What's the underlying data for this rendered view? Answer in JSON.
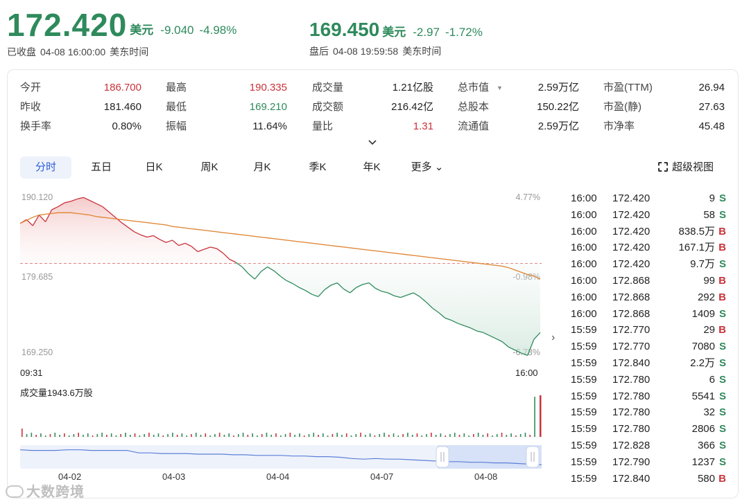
{
  "header": {
    "close_price": "172.420",
    "close_unit": "美元",
    "close_change": "-9.040",
    "close_change_pct": "-4.98%",
    "close_status": "已收盘",
    "close_time": "04-08 16:00:00",
    "close_tz": "美东时间",
    "after_price": "169.450",
    "after_unit": "美元",
    "after_change": "-2.97",
    "after_change_pct": "-1.72%",
    "after_status": "盘后",
    "after_time": "04-08 19:59:58",
    "after_tz": "美东时间"
  },
  "stats": [
    [
      {
        "label": "今开",
        "value": "186.700",
        "tone": "red"
      },
      {
        "label": "昨收",
        "value": "181.460",
        "tone": ""
      },
      {
        "label": "换手率",
        "value": "0.80%",
        "tone": ""
      }
    ],
    [
      {
        "label": "最高",
        "value": "190.335",
        "tone": "red"
      },
      {
        "label": "最低",
        "value": "169.210",
        "tone": "green"
      },
      {
        "label": "振幅",
        "value": "11.64%",
        "tone": ""
      }
    ],
    [
      {
        "label": "成交量",
        "value": "1.21亿股",
        "tone": ""
      },
      {
        "label": "成交额",
        "value": "216.42亿",
        "tone": ""
      },
      {
        "label": "量比",
        "value": "1.31",
        "tone": "red"
      }
    ],
    [
      {
        "label": "总市值",
        "value": "2.59万亿",
        "tone": ""
      },
      {
        "label": "总股本",
        "value": "150.22亿",
        "tone": ""
      },
      {
        "label": "流通值",
        "value": "2.59万亿",
        "tone": ""
      }
    ],
    [
      {
        "label": "市盈(TTM)",
        "value": "26.94",
        "tone": ""
      },
      {
        "label": "市盈(静)",
        "value": "27.63",
        "tone": ""
      },
      {
        "label": "市净率",
        "value": "45.48",
        "tone": ""
      }
    ]
  ],
  "tabs": [
    "分时",
    "五日",
    "日K",
    "周K",
    "月K",
    "季K",
    "年K",
    "更多"
  ],
  "active_tab": "分时",
  "superview_label": "超级视图",
  "chart_data": {
    "type": "line",
    "y_left_labels": [
      "190.120",
      "179.685",
      "169.250"
    ],
    "y_right_labels": [
      "4.77%",
      "-0.98%",
      "-6.73%"
    ],
    "x_labels": [
      "09:31",
      "16:00"
    ],
    "ylim": [
      169.25,
      190.12
    ],
    "prev_close": 181.46,
    "series": [
      {
        "values": [
          186.7,
          187.2,
          186.4,
          187.8,
          186.9,
          188.5,
          188.9,
          189.4,
          189.6,
          189.9,
          190.1,
          189.7,
          189.3,
          188.9,
          188.2,
          187.5,
          186.8,
          186.2,
          185.6,
          185.2,
          184.9,
          185.1,
          184.6,
          184.2,
          184.5,
          183.8,
          184.1,
          183.7,
          183.0,
          183.3,
          183.6,
          183.4,
          182.8,
          182.0,
          181.6,
          181.0,
          180.1,
          179.4,
          180.4,
          181.0,
          180.5,
          179.8,
          179.2,
          178.8,
          178.3,
          177.9,
          177.4,
          177.1,
          178.0,
          178.6,
          178.9,
          178.1,
          177.6,
          178.3,
          178.7,
          178.9,
          178.2,
          177.8,
          177.6,
          177.2,
          177.0,
          177.3,
          177.6,
          177.1,
          176.4,
          175.6,
          175.0,
          174.3,
          174.0,
          173.6,
          173.3,
          173.0,
          172.6,
          172.4,
          172.0,
          171.6,
          171.2,
          170.5,
          170.1,
          169.7,
          169.4,
          171.5,
          172.4
        ]
      },
      {
        "values": [
          186.7,
          187.1,
          187.5,
          187.8,
          187.9,
          188.0,
          188.1,
          188.1,
          188.1,
          188.0,
          187.9,
          187.8,
          187.6,
          187.5,
          187.4,
          187.3,
          187.2,
          187.1,
          187.0,
          186.9,
          186.8,
          186.7,
          186.6,
          186.5,
          186.3,
          186.2,
          186.1,
          186.0,
          185.9,
          185.8,
          185.7,
          185.6,
          185.5,
          185.4,
          185.3,
          185.2,
          185.1,
          185.0,
          184.9,
          184.8,
          184.7,
          184.6,
          184.5,
          184.4,
          184.3,
          184.2,
          184.1,
          184.0,
          183.9,
          183.8,
          183.7,
          183.6,
          183.5,
          183.4,
          183.3,
          183.2,
          183.1,
          183.0,
          182.9,
          182.8,
          182.7,
          182.6,
          182.5,
          182.4,
          182.3,
          182.2,
          182.1,
          182.0,
          181.9,
          181.8,
          181.7,
          181.6,
          181.5,
          181.4,
          181.3,
          181.2,
          181.1,
          180.9,
          180.6,
          180.3,
          180.0,
          179.8,
          179.4
        ]
      }
    ]
  },
  "volume_label": "成交量1943.6万股",
  "navigator_dates": [
    "04-02",
    "04-03",
    "04-04",
    "04-07",
    "04-08"
  ],
  "trades": [
    {
      "time": "16:00",
      "price": "172.420",
      "vol": "9",
      "side": "S"
    },
    {
      "time": "16:00",
      "price": "172.420",
      "vol": "58",
      "side": "S"
    },
    {
      "time": "16:00",
      "price": "172.420",
      "vol": "838.5万",
      "side": "B"
    },
    {
      "time": "16:00",
      "price": "172.420",
      "vol": "167.1万",
      "side": "B"
    },
    {
      "time": "16:00",
      "price": "172.420",
      "vol": "9.7万",
      "side": "S"
    },
    {
      "time": "16:00",
      "price": "172.868",
      "vol": "99",
      "side": "B"
    },
    {
      "time": "16:00",
      "price": "172.868",
      "vol": "292",
      "side": "B"
    },
    {
      "time": "16:00",
      "price": "172.868",
      "vol": "1409",
      "side": "S"
    },
    {
      "time": "15:59",
      "price": "172.770",
      "vol": "29",
      "side": "B"
    },
    {
      "time": "15:59",
      "price": "172.770",
      "vol": "7080",
      "side": "S"
    },
    {
      "time": "15:59",
      "price": "172.840",
      "vol": "2.2万",
      "side": "S"
    },
    {
      "time": "15:59",
      "price": "172.780",
      "vol": "6",
      "side": "S"
    },
    {
      "time": "15:59",
      "price": "172.780",
      "vol": "5541",
      "side": "S"
    },
    {
      "time": "15:59",
      "price": "172.780",
      "vol": "32",
      "side": "S"
    },
    {
      "time": "15:59",
      "price": "172.780",
      "vol": "2806",
      "side": "S"
    },
    {
      "time": "15:59",
      "price": "172.828",
      "vol": "366",
      "side": "S"
    },
    {
      "time": "15:59",
      "price": "172.790",
      "vol": "1237",
      "side": "S"
    },
    {
      "time": "15:59",
      "price": "172.840",
      "vol": "580",
      "side": "B"
    }
  ],
  "watermark": "大数跨境",
  "colors": {
    "up": "#c8323a",
    "down": "#2e8a5c",
    "avg": "#e08a3c",
    "accent": "#2a5bd7"
  }
}
